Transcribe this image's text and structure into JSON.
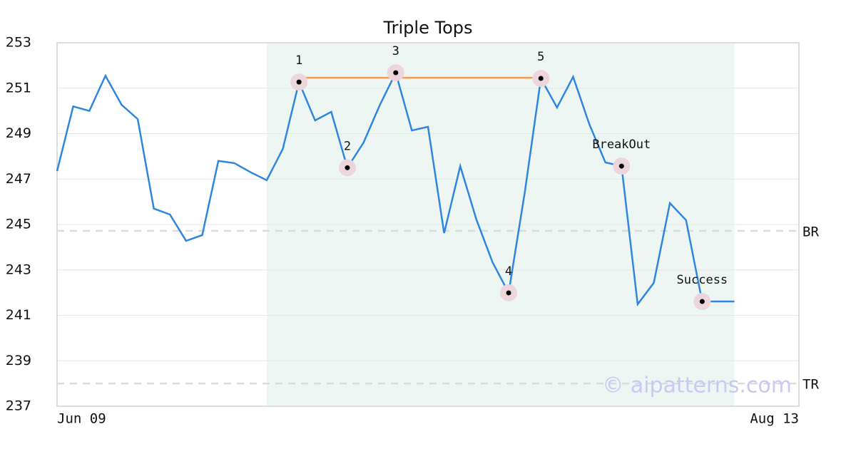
{
  "chart_data": {
    "type": "line",
    "title": "Triple Tops",
    "x": [
      0,
      1,
      2,
      3,
      4,
      5,
      6,
      7,
      8,
      9,
      10,
      11,
      12,
      13,
      14,
      15,
      16,
      17,
      18,
      19,
      20,
      21,
      22,
      23,
      24,
      25,
      26,
      27,
      28,
      29,
      30,
      31,
      32,
      33,
      34,
      35,
      36,
      37,
      38,
      39,
      40,
      41,
      42
    ],
    "values": [
      247.35,
      250.2,
      250.0,
      251.55,
      250.27,
      249.64,
      245.7,
      245.44,
      244.28,
      244.53,
      247.8,
      247.7,
      247.3,
      246.95,
      248.33,
      251.27,
      249.58,
      249.96,
      247.5,
      248.6,
      250.24,
      251.68,
      249.14,
      249.3,
      244.62,
      247.57,
      245.22,
      243.34,
      241.99,
      246.41,
      251.43,
      250.15,
      251.5,
      249.42,
      247.73,
      247.57,
      241.49,
      242.43,
      245.94,
      245.19,
      241.61,
      241.61,
      241.61
    ],
    "color": "#2e86de",
    "xlim": [
      0,
      46
    ],
    "xticks": [
      {
        "value": 0,
        "label": "Jun 09"
      },
      {
        "value": 46,
        "label": "Aug 13"
      }
    ],
    "ylim": [
      237,
      253
    ],
    "yticks": [
      237,
      239,
      241,
      243,
      245,
      247,
      249,
      251,
      253
    ],
    "grid": true,
    "highlight_range": [
      13,
      42
    ],
    "highlight_color": "#eef6f3",
    "pattern_line": {
      "x": [
        15,
        30
      ],
      "y": 251.46,
      "color": "#f39c50"
    },
    "levels": [
      {
        "label": "BR",
        "value": 244.72
      },
      {
        "label": "TR",
        "value": 238.0
      }
    ],
    "annotations": [
      {
        "label": "1",
        "x": 15,
        "y": 251.27
      },
      {
        "label": "2",
        "x": 18,
        "y": 247.5
      },
      {
        "label": "3",
        "x": 21,
        "y": 251.68
      },
      {
        "label": "4",
        "x": 28,
        "y": 241.99
      },
      {
        "label": "5",
        "x": 30,
        "y": 251.43
      },
      {
        "label": "BreakOut",
        "x": 35,
        "y": 247.57
      },
      {
        "label": "Success",
        "x": 40,
        "y": 241.61
      }
    ],
    "watermark": "© aipatterns.com"
  }
}
